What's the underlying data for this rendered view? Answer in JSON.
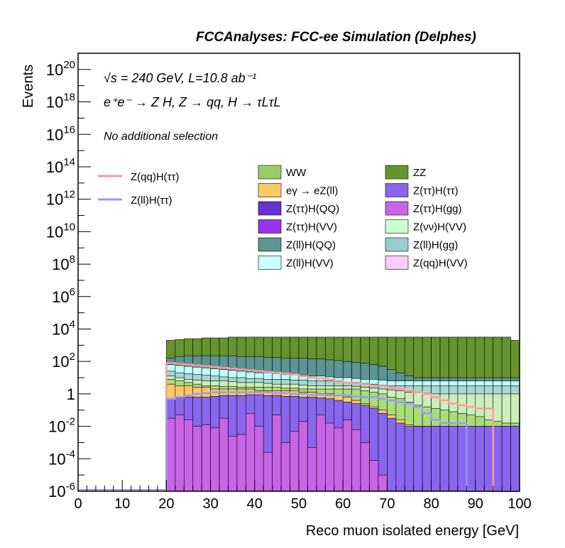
{
  "header": {
    "title": "FCCAnalyses: FCC-ee Simulation (Delphes)",
    "energy_label": "√s = 240 GeV, L=10.8 ab⁻¹",
    "process_label": "e⁺e⁻ → Z H, Z → qq, H → τLτL",
    "selection_label": "No additional selection"
  },
  "chart_data": {
    "type": "area",
    "title": "FCCAnalyses: FCC-ee Simulation (Delphes)",
    "xlabel": "Reco muon isolated energy [GeV]",
    "ylabel": "Events",
    "xlim": [
      0,
      100
    ],
    "ylim": [
      1e-06,
      1e+21
    ],
    "log_y": true,
    "x_ticks": [
      0,
      10,
      20,
      30,
      40,
      50,
      60,
      70,
      80,
      90,
      100
    ],
    "x_tick_labels": [
      "0",
      "10",
      "20",
      "30",
      "40",
      "50",
      "60",
      "70",
      "80",
      "90",
      "100"
    ],
    "y_ticks": [
      1e-06,
      0.0001,
      0.01,
      1,
      100,
      10000.0,
      1000000.0,
      100000000.0,
      10000000000.0,
      1000000000000.0,
      100000000000000.0,
      1e+16,
      1e+18,
      1e+20
    ],
    "y_tick_labels": [
      {
        "base": "10",
        "exp": "-6"
      },
      {
        "base": "10",
        "exp": "-4"
      },
      {
        "base": "10",
        "exp": "-2"
      },
      {
        "base": "1",
        "exp": ""
      },
      {
        "base": "10",
        "exp": "2"
      },
      {
        "base": "10",
        "exp": "4"
      },
      {
        "base": "10",
        "exp": "6"
      },
      {
        "base": "10",
        "exp": "8"
      },
      {
        "base": "10",
        "exp": "10"
      },
      {
        "base": "10",
        "exp": "12"
      },
      {
        "base": "10",
        "exp": "14"
      },
      {
        "base": "10",
        "exp": "16"
      },
      {
        "base": "10",
        "exp": "18"
      },
      {
        "base": "10",
        "exp": "20"
      }
    ],
    "bin_edges_start": 20,
    "bin_width": 2,
    "stack_top_log10": [
      [
        -1.5,
        -1.3,
        -1.6,
        -2.0,
        -1.9,
        -2.1,
        -1.5,
        -2.6,
        -2.5,
        -1.2,
        -2.0,
        -3.6,
        -1.3,
        -3.0,
        -2.3,
        -1.7,
        -3.3,
        -1.3,
        -1.8,
        -2.1,
        -1.6,
        -2.2,
        -3.0,
        -4.1,
        -5.0,
        -6.0,
        -6.0,
        -6.0,
        -6.0,
        -6.0,
        -6.0,
        -6.0,
        -6.0,
        -6.0,
        -6.0,
        -6.0,
        -6.0,
        -6.0,
        -6.0,
        -6.0
      ],
      [
        -0.3,
        -0.25,
        -0.2,
        -0.2,
        -0.2,
        -0.15,
        -0.1,
        -0.1,
        -0.1,
        -0.05,
        -0.05,
        -0.1,
        -0.1,
        -0.15,
        -0.15,
        -0.2,
        -0.2,
        -0.25,
        -0.3,
        -0.4,
        -0.5,
        -0.6,
        -0.7,
        -0.9,
        -1.2,
        -1.5,
        -1.8,
        -2.0,
        -2.0,
        -2.0,
        -2.0,
        -2.0,
        -2.0,
        -2.0,
        -2.0,
        -2.0,
        -2.0,
        -2.0,
        -2.0,
        -2.0
      ],
      [
        0.6,
        0.5,
        0.5,
        0.4,
        0.4,
        0.3,
        0.3,
        0.3,
        0.3,
        0.3,
        0.2,
        0.2,
        0.2,
        0.2,
        0.2,
        0.1,
        0.1,
        0.0,
        0.0,
        -0.1,
        -0.2,
        -0.4,
        -0.6,
        -0.8,
        -1.0,
        -1.3,
        -1.6,
        -1.9,
        -2.0,
        -2.0,
        -2.0,
        -2.0,
        -2.0,
        -2.0,
        -2.0,
        -2.0,
        -2.0,
        -2.0,
        -2.0,
        -2.0
      ],
      [
        0.9,
        0.8,
        0.7,
        0.6,
        0.5,
        0.5,
        0.45,
        0.45,
        0.4,
        0.4,
        0.4,
        0.4,
        0.4,
        0.35,
        0.35,
        0.3,
        0.3,
        0.3,
        0.3,
        0.3,
        0.3,
        0.3,
        0.2,
        0.1,
        0.0,
        -0.2,
        -0.3,
        -0.5,
        -0.7,
        -0.8,
        -0.9,
        -1.0,
        -1.1,
        -1.2,
        -1.3,
        -1.4,
        -1.6,
        -1.7,
        -1.8,
        -1.8
      ],
      [
        1.1,
        1.0,
        0.9,
        0.85,
        0.8,
        0.8,
        0.8,
        0.75,
        0.7,
        0.7,
        0.7,
        0.65,
        0.6,
        0.6,
        0.6,
        0.55,
        0.5,
        0.5,
        0.5,
        0.5,
        0.5,
        0.45,
        0.4,
        0.35,
        0.3,
        0.25,
        0.2,
        0.1,
        0.1,
        0.05,
        0.0,
        0.0,
        0.0,
        0.0,
        0.0,
        0.0,
        0.0,
        0.0,
        0.0,
        0.0
      ],
      [
        1.4,
        1.3,
        1.25,
        1.2,
        1.15,
        1.1,
        1.05,
        1.0,
        1.0,
        0.95,
        0.95,
        0.9,
        0.9,
        0.9,
        0.85,
        0.85,
        0.8,
        0.8,
        0.8,
        0.75,
        0.7,
        0.7,
        0.65,
        0.6,
        0.55,
        0.5,
        0.5,
        0.5,
        0.5,
        0.5,
        0.5,
        0.5,
        0.5,
        0.5,
        0.5,
        0.5,
        0.5,
        0.5,
        0.5,
        0.5
      ],
      [
        1.8,
        1.75,
        1.7,
        1.65,
        1.6,
        1.55,
        1.5,
        1.45,
        1.4,
        1.35,
        1.3,
        1.3,
        1.25,
        1.2,
        1.2,
        1.15,
        1.1,
        1.1,
        1.05,
        1.0,
        1.0,
        0.95,
        0.9,
        0.9,
        0.85,
        0.8,
        0.8,
        0.8,
        0.8,
        0.8,
        0.8,
        0.8,
        0.8,
        0.8,
        0.8,
        0.8,
        0.8,
        0.8,
        0.8,
        0.8
      ],
      [
        2.2,
        2.3,
        2.35,
        2.35,
        2.35,
        2.35,
        2.35,
        2.35,
        2.3,
        2.3,
        2.3,
        2.25,
        2.25,
        2.2,
        2.2,
        2.2,
        2.15,
        2.15,
        2.1,
        2.05,
        2.0,
        1.95,
        1.9,
        1.8,
        1.7,
        1.5,
        1.3,
        1.1,
        1.0,
        1.0,
        1.0,
        1.0,
        1.0,
        1.0,
        1.0,
        1.0,
        1.0,
        1.0,
        1.0,
        1.0
      ],
      [
        3.3,
        3.35,
        3.4,
        3.4,
        3.45,
        3.45,
        3.45,
        3.5,
        3.5,
        3.5,
        3.5,
        3.5,
        3.5,
        3.5,
        3.5,
        3.5,
        3.5,
        3.5,
        3.5,
        3.5,
        3.5,
        3.5,
        3.5,
        3.5,
        3.5,
        3.5,
        3.5,
        3.5,
        3.5,
        3.5,
        3.5,
        3.5,
        3.5,
        3.5,
        3.5,
        3.5,
        3.5,
        3.5,
        3.5,
        3.3
      ]
    ],
    "stack_colors": [
      "#c864e6",
      "#8866ee",
      "#ffc864",
      "#aadd77",
      "#cceebb",
      "#a8d8d0",
      "#c0ffff",
      "#5e9494",
      "#66942e"
    ],
    "line_series": [
      {
        "name": "Z(qq)H(ττ)",
        "color": "#ff9999",
        "log10": [
          1.9,
          1.85,
          1.8,
          1.75,
          1.7,
          1.65,
          1.6,
          1.55,
          1.5,
          1.45,
          1.4,
          1.35,
          1.3,
          1.25,
          1.2,
          1.1,
          1.0,
          0.95,
          0.9,
          0.8,
          0.7,
          0.65,
          0.6,
          0.5,
          0.5,
          0.4,
          0.3,
          0.2,
          0.1,
          0.0,
          -0.2,
          -0.4,
          -0.6,
          -0.7,
          -0.8,
          -0.9,
          -0.9,
          -6.0,
          -6.0,
          -6.0
        ]
      },
      {
        "name": "Z(ll)H(ττ)",
        "color": "#9999ff",
        "log10": [
          -0.3,
          -0.2,
          -0.1,
          0.0,
          0.05,
          0.1,
          0.1,
          0.1,
          0.1,
          0.1,
          0.1,
          0.1,
          0.05,
          0.05,
          0.0,
          0.0,
          -0.05,
          -0.05,
          -0.1,
          -0.1,
          -0.1,
          -0.15,
          -0.2,
          -0.2,
          -0.3,
          -0.4,
          -0.5,
          -0.6,
          -0.8,
          -1.2,
          -1.6,
          -1.8,
          -1.8,
          -1.8,
          -6.0,
          -6.0,
          -6.0,
          -6.0,
          -6.0,
          -6.0
        ]
      }
    ],
    "legend_lines": [
      "Z(qq)H(ττ)",
      "Z(ll)H(ττ)"
    ],
    "legend_fills": [
      {
        "label": "WW",
        "color": "#99cc66"
      },
      {
        "label": "ZZ",
        "color": "#66942e"
      },
      {
        "label": "eγ → eZ(ll)",
        "color": "#ffc864"
      },
      {
        "label": "Z(ττ)H(ττ)",
        "color": "#8866ee"
      },
      {
        "label": "Z(ττ)H(QQ)",
        "color": "#6633cc"
      },
      {
        "label": "Z(ττ)H(gg)",
        "color": "#c864e6"
      },
      {
        "label": "Z(ττ)H(VV)",
        "color": "#9933ee"
      },
      {
        "label": "Z(νν)H(VV)",
        "color": "#ccffcc"
      },
      {
        "label": "Z(ll)H(QQ)",
        "color": "#5e9494"
      },
      {
        "label": "Z(ll)H(gg)",
        "color": "#99cccc"
      },
      {
        "label": "Z(ll)H(VV)",
        "color": "#ccffff"
      },
      {
        "label": "Z(qq)H(VV)",
        "color": "#ffccff"
      }
    ],
    "legend_position": "top-right"
  }
}
